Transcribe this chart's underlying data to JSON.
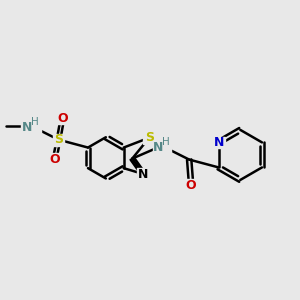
{
  "bg_color": "#e8e8e8",
  "bond_color": "#000000",
  "bond_width": 1.8,
  "figsize": [
    3.0,
    3.0
  ],
  "dpi": 100,
  "xlim": [
    0.0,
    3.0
  ],
  "ylim": [
    0.5,
    2.5
  ],
  "colors": {
    "N": "#0000cc",
    "S": "#bbbb00",
    "O": "#cc0000",
    "H": "#558888",
    "C": "#000000"
  }
}
